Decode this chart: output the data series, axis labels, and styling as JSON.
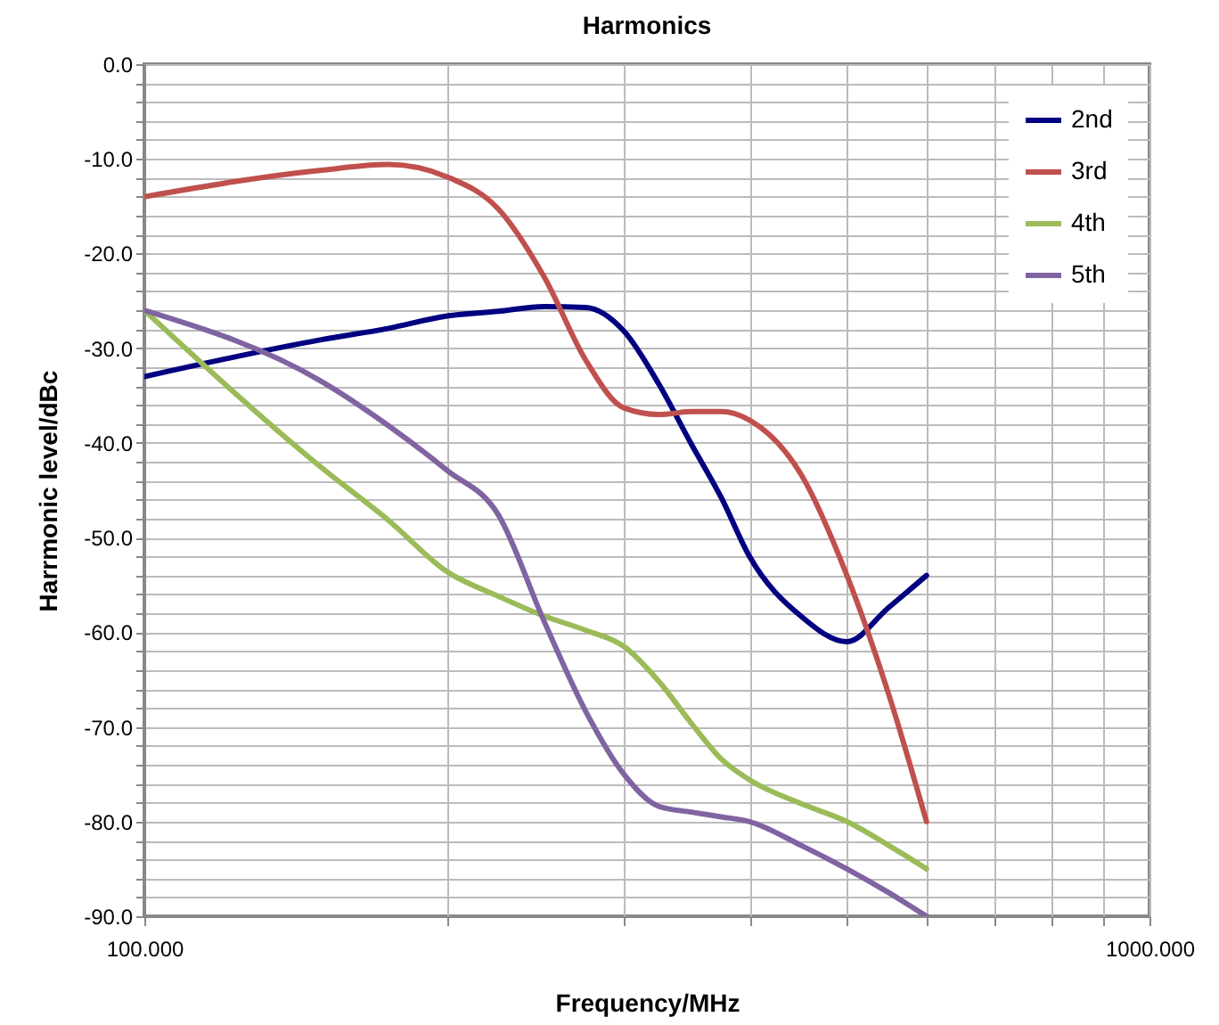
{
  "chart_data": {
    "type": "line",
    "title": "Harmonics",
    "xlabel": "Frequency/MHz",
    "ylabel": "Harrmonic level/dBc",
    "x": [
      100,
      150,
      175,
      200,
      225,
      250,
      275,
      300,
      325,
      350,
      375,
      400,
      450,
      500,
      550,
      600
    ],
    "series": [
      {
        "name": "2nd",
        "color": "#000080",
        "values": [
          -33,
          -29.1,
          -27.9,
          -26.6,
          -26.1,
          -25.6,
          -25.7,
          -28.2,
          -33.8,
          -40.1,
          -45.8,
          -52,
          -58.3,
          -61,
          -57.4,
          -54
        ]
      },
      {
        "name": "3rd",
        "color": "#c0504d",
        "values": [
          -14,
          -11.2,
          -10.6,
          -11.9,
          -15.3,
          -22.5,
          -31.3,
          -36.3,
          -37,
          -36.7,
          -36.7,
          -37.6,
          -43.3,
          -54,
          -66.5,
          -80
        ]
      },
      {
        "name": "4th",
        "color": "#9bbb59",
        "values": [
          -26,
          -42.6,
          -48.2,
          -53.6,
          -56.2,
          -58.3,
          -59.8,
          -61.5,
          -65.2,
          -69.6,
          -73.4,
          -75.6,
          -78.1,
          -80,
          -82.5,
          -85
        ]
      },
      {
        "name": "5th",
        "color": "#8064a2",
        "values": [
          -26,
          -33.5,
          -38.2,
          -42.9,
          -47.6,
          -58.9,
          -68.4,
          -75,
          -78.4,
          -79,
          -79.5,
          -80,
          -82.5,
          -85,
          -87.5,
          -90
        ]
      }
    ],
    "log": "x",
    "xlim": [
      100,
      1000
    ],
    "ylim": [
      -90,
      0
    ],
    "xticks": [
      {
        "value": 100,
        "label": "100.000"
      },
      {
        "value": 200,
        "label": null
      },
      {
        "value": 300,
        "label": null
      },
      {
        "value": 400,
        "label": null
      },
      {
        "value": 500,
        "label": null
      },
      {
        "value": 600,
        "label": null
      },
      {
        "value": 700,
        "label": null
      },
      {
        "value": 800,
        "label": null
      },
      {
        "value": 900,
        "label": null
      },
      {
        "value": 1000,
        "label": "1000.000"
      }
    ],
    "yticks": [
      {
        "value": -90,
        "label": "-90.0"
      },
      {
        "value": -88,
        "label": null
      },
      {
        "value": -86,
        "label": null
      },
      {
        "value": -84,
        "label": null
      },
      {
        "value": -82,
        "label": null
      },
      {
        "value": -80,
        "label": "-80.0"
      },
      {
        "value": -78,
        "label": null
      },
      {
        "value": -76,
        "label": null
      },
      {
        "value": -74,
        "label": null
      },
      {
        "value": -72,
        "label": null
      },
      {
        "value": -70,
        "label": "-70.0"
      },
      {
        "value": -68,
        "label": null
      },
      {
        "value": -66,
        "label": null
      },
      {
        "value": -64,
        "label": null
      },
      {
        "value": -62,
        "label": null
      },
      {
        "value": -60,
        "label": "-60.0"
      },
      {
        "value": -58,
        "label": null
      },
      {
        "value": -56,
        "label": null
      },
      {
        "value": -54,
        "label": null
      },
      {
        "value": -52,
        "label": null
      },
      {
        "value": -50,
        "label": "-50.0"
      },
      {
        "value": -48,
        "label": null
      },
      {
        "value": -46,
        "label": null
      },
      {
        "value": -44,
        "label": null
      },
      {
        "value": -42,
        "label": null
      },
      {
        "value": -40,
        "label": "-40.0"
      },
      {
        "value": -38,
        "label": null
      },
      {
        "value": -36,
        "label": null
      },
      {
        "value": -34,
        "label": null
      },
      {
        "value": -32,
        "label": null
      },
      {
        "value": -30,
        "label": "-30.0"
      },
      {
        "value": -28,
        "label": null
      },
      {
        "value": -26,
        "label": null
      },
      {
        "value": -24,
        "label": null
      },
      {
        "value": -22,
        "label": null
      },
      {
        "value": -20,
        "label": "-20.0"
      },
      {
        "value": -18,
        "label": null
      },
      {
        "value": -16,
        "label": null
      },
      {
        "value": -14,
        "label": null
      },
      {
        "value": -12,
        "label": null
      },
      {
        "value": -10,
        "label": "-10.0"
      },
      {
        "value": -8,
        "label": null
      },
      {
        "value": -6,
        "label": null
      },
      {
        "value": -4,
        "label": null
      },
      {
        "value": -2,
        "label": null
      },
      {
        "value": 0,
        "label": "0.0"
      }
    ],
    "grid": true,
    "legend": "top right",
    "marker": "none",
    "line_style": "solid"
  }
}
